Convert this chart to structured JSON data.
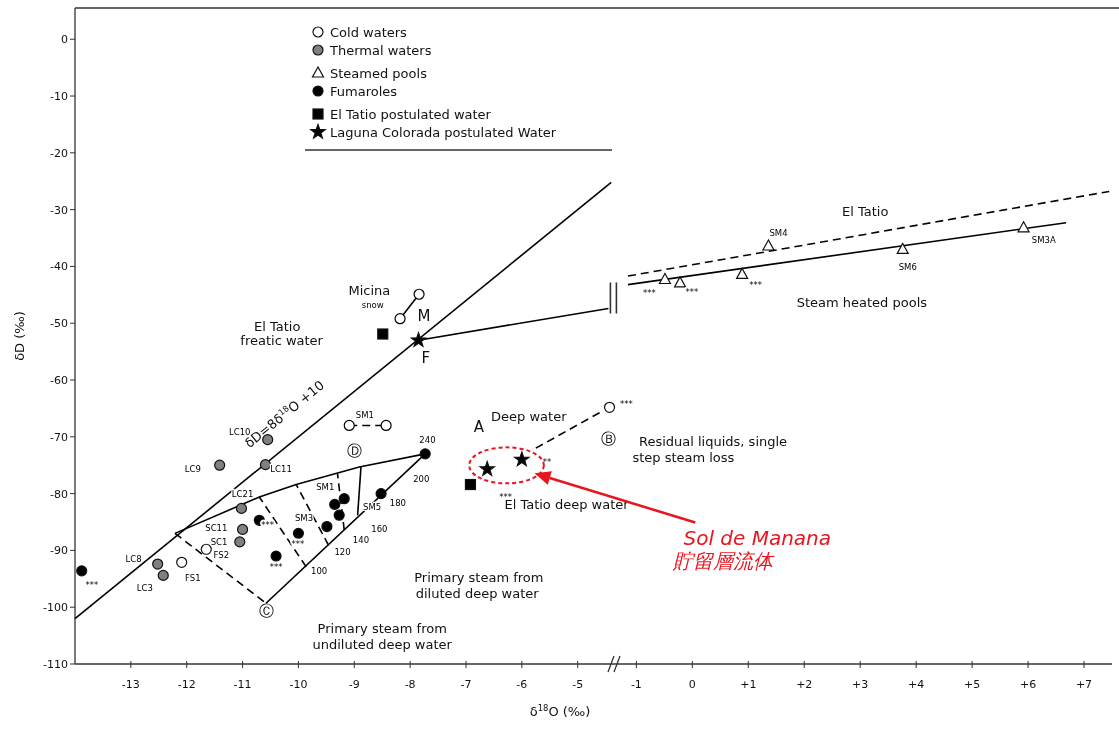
{
  "chart_data": [
    {
      "type": "scatter",
      "xlabel": "δ$^{18}$O (‰)",
      "ylabel": "δD (‰)",
      "xlim": [
        -14,
        -4.35
      ],
      "ylim": [
        -110,
        5.5
      ],
      "xticks": [
        -13,
        -12,
        -11,
        -10,
        -9,
        -8,
        -7,
        -6,
        -5
      ],
      "yticks": [
        0,
        -10,
        -20,
        -30,
        -40,
        -50,
        -60,
        -70,
        -80,
        -90,
        -100,
        -110
      ],
      "legend": "top",
      "series": [
        {
          "name": "Cold waters",
          "marker": "circle",
          "color": "#ffffff",
          "x": [
            -12.09,
            -11.65,
            -4.43
          ],
          "values": [
            -92.1,
            -89.8,
            -64.8
          ]
        },
        {
          "name": "Thermal waters",
          "marker": "circle",
          "color": "#808080",
          "x": [
            -10.55,
            -11.41,
            -10.59,
            -11.02,
            -11.0,
            -11.05,
            -12.52,
            -12.42
          ],
          "values": [
            -70.5,
            -75.0,
            -74.9,
            -82.6,
            -86.3,
            -88.5,
            -92.4,
            -94.4
          ]
        },
        {
          "name": "Fumaroles",
          "marker": "circle",
          "color": "#000000",
          "x": [
            -13.88,
            -10.7,
            -10.0,
            -10.4,
            -9.49,
            -9.35,
            -9.18,
            -9.27,
            -8.52,
            -7.73
          ],
          "values": [
            -93.6,
            -84.7,
            -87.0,
            -91.0,
            -85.8,
            -81.9,
            -80.9,
            -83.8,
            -80.0,
            -73.0
          ]
        },
        {
          "name": "El Tatio postulated water",
          "marker": "square",
          "color": "#000000",
          "x": [
            -8.49,
            -6.92
          ],
          "values": [
            -51.9,
            -78.4
          ]
        },
        {
          "name": "Laguna Colorada postulated Water",
          "marker": "star",
          "color": "#000000",
          "x": [
            -7.85,
            -6.62,
            -6.0
          ],
          "values": [
            -53.0,
            -75.7,
            -74.0
          ]
        },
        {
          "type": "line",
          "color": "#000000",
          "line_style": "solid",
          "x": [
            -14,
            -4.4
          ],
          "values": [
            -102,
            -25.2
          ]
        },
        {
          "type": "line",
          "color": "#000000",
          "line_style": "solid",
          "x": [
            -7.85,
            -4.45
          ],
          "values": [
            -53.0,
            -47.4
          ]
        },
        {
          "type": "line",
          "color": "#000000",
          "line_style": "solid",
          "x": [
            -12.21,
            -10.7,
            -10.04,
            -8.91,
            -7.73
          ],
          "values": [
            -87.0,
            -80.6,
            -78.4,
            -75.3,
            -73.0
          ]
        },
        {
          "type": "line",
          "color": "#000000",
          "line_style": "solid",
          "x": [
            -10.58,
            -7.73
          ],
          "values": [
            -99.3,
            -73.0
          ]
        },
        {
          "type": "line",
          "color": "#000000",
          "line_style": "dashed",
          "x": [
            -12.21,
            -10.58
          ],
          "values": [
            -87.0,
            -99.3
          ]
        },
        {
          "type": "line",
          "color": "#000000",
          "line_style": "dashed",
          "x": [
            -9.86,
            -10.7
          ],
          "values": [
            -92.9,
            -80.6
          ]
        },
        {
          "type": "line",
          "color": "#000000",
          "line_style": "dashed",
          "x": [
            -9.46,
            -10.04
          ],
          "values": [
            -89.1,
            -78.4
          ]
        },
        {
          "type": "line",
          "color": "#000000",
          "line_style": "dashed",
          "x": [
            -9.18,
            -9.3
          ],
          "values": [
            -86.4,
            -76.5
          ]
        },
        {
          "type": "line",
          "color": "#000000",
          "line_style": "solid",
          "x": [
            -8.94,
            -8.88
          ],
          "values": [
            -83.8,
            -75.3
          ]
        },
        {
          "type": "line",
          "color": "#000000",
          "line_style": "dashed",
          "x": [
            -5.75,
            -4.58
          ],
          "values": [
            -72.0,
            -65.6
          ]
        },
        {
          "type": "line",
          "color": "#000000",
          "line_style": "solid",
          "marker": "circle",
          "x": [
            -8.18,
            -7.84
          ],
          "values": [
            -49.2,
            -44.9
          ]
        },
        {
          "type": "line",
          "color": "#000000",
          "line_style": "dashed",
          "marker": "circle",
          "x": [
            -9.09,
            -8.43
          ],
          "values": [
            -68.0,
            -68.0
          ]
        }
      ],
      "annotations": [
        "δD=8δ$^{18}$O +10",
        "Micina",
        "snow",
        "M",
        "F",
        "El Tatio",
        "freatic water",
        "Deep water",
        "A",
        "Ⓑ",
        "Ⓓ",
        "Ⓒ",
        "El Tatio deep water",
        "Primary steam from",
        "diluted deep water",
        "Primary steam from",
        "undiluted deep water",
        "240",
        "200",
        "180",
        "160",
        "140",
        "120",
        "100",
        "LC10",
        "LC9",
        "LC11",
        "LC21",
        "SC11",
        "SC1",
        "FS2",
        "LC8",
        "LC3",
        "FS1",
        "SM1",
        "SM1",
        "SM3",
        "SM5",
        "***",
        "***",
        "***",
        "***",
        "***",
        "**"
      ]
    },
    {
      "type": "scatter",
      "xlim": [
        -1.4,
        7.5
      ],
      "ylim": [
        -110,
        5.5
      ],
      "tick_labels": "x",
      "legend": "top",
      "xticks": [
        {
          "value": -1,
          "label": "-1"
        },
        0,
        {
          "value": 1,
          "label": "+1"
        },
        {
          "value": 2,
          "label": "+2"
        },
        {
          "value": 3,
          "label": "+3"
        },
        {
          "value": 4,
          "label": "+4"
        },
        {
          "value": 5,
          "label": "+5"
        },
        {
          "value": 6,
          "label": "+6"
        },
        {
          "value": 7,
          "label": "+7"
        }
      ],
      "series": [
        {
          "name": "Steamed pools",
          "marker": "triangle",
          "color": "#ffffff",
          "x": [
            -0.49,
            -0.22,
            0.89,
            1.36,
            3.76,
            5.92
          ],
          "values": [
            -42.3,
            -42.9,
            -41.4,
            -36.4,
            -37.0,
            -33.2
          ]
        },
        {
          "type": "line",
          "color": "#000000",
          "line_style": "solid",
          "x": [
            -1.15,
            6.68
          ],
          "values": [
            -43.2,
            -32.3
          ]
        },
        {
          "type": "line",
          "color": "#000000",
          "line_style": "dashed",
          "x": [
            -1.15,
            7.45
          ],
          "values": [
            -41.7,
            -26.8
          ]
        }
      ],
      "annotations": [
        "Residual liquids, single",
        "step steam loss",
        "***",
        "***",
        "***",
        "***",
        "SM4",
        "SM6",
        "SM3A",
        "El Tatio",
        "Steam heated pools",
        "Sol de Manana",
        "貯留層流体"
      ]
    }
  ]
}
